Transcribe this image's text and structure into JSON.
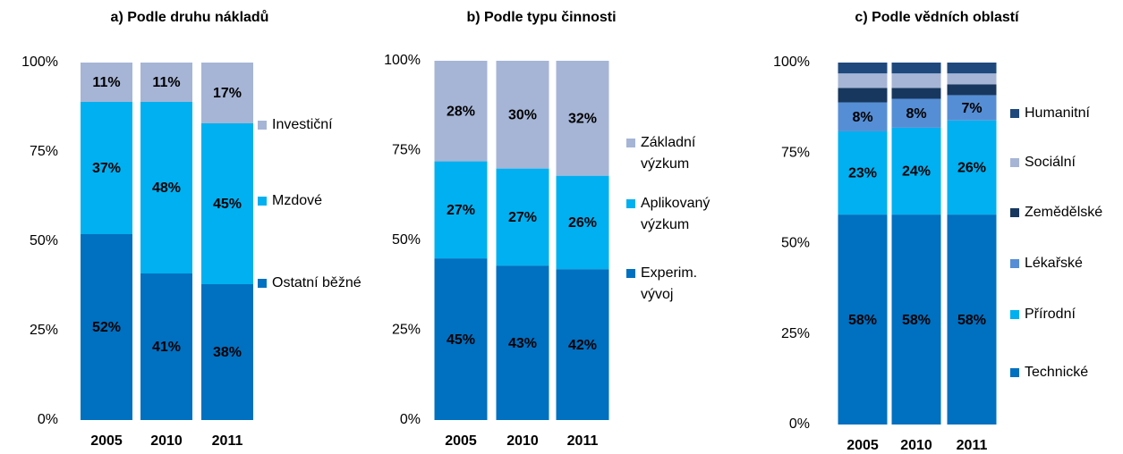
{
  "chart_data": [
    {
      "type": "stacked-bar",
      "title": "a) Podle druhu nákladů",
      "categories": [
        "2005",
        "2010",
        "2011"
      ],
      "series": [
        {
          "name": "Ostatní běžné",
          "color": "#0070c0",
          "values": [
            52,
            41,
            38
          ],
          "value_labels": [
            "52%",
            "41%",
            "38%"
          ]
        },
        {
          "name": "Mzdové",
          "color": "#00b0f0",
          "values": [
            37,
            48,
            45
          ],
          "value_labels": [
            "37%",
            "48%",
            "45%"
          ]
        },
        {
          "name": "Investiční",
          "color": "#a6b5d6",
          "values": [
            11,
            11,
            17
          ],
          "value_labels": [
            "11%",
            "11%",
            "17%"
          ]
        }
      ],
      "ylim": [
        0,
        100
      ],
      "yticks": [
        {
          "value": 0,
          "label": "0%"
        },
        {
          "value": 25,
          "label": "25%"
        },
        {
          "value": 50,
          "label": "50%"
        },
        {
          "value": 75,
          "label": "75%"
        },
        {
          "value": 100,
          "label": "100%"
        }
      ],
      "legend": "right"
    },
    {
      "type": "stacked-bar",
      "title": "b) Podle typu činnosti",
      "categories": [
        "2005",
        "2010",
        "2011"
      ],
      "series": [
        {
          "name": "Experim. vývoj",
          "color": "#0070c0",
          "values": [
            45,
            43,
            42
          ],
          "value_labels": [
            "45%",
            "43%",
            "42%"
          ]
        },
        {
          "name": "Aplikovaný výzkum",
          "color": "#00b0f0",
          "values": [
            27,
            27,
            26
          ],
          "value_labels": [
            "27%",
            "27%",
            "26%"
          ]
        },
        {
          "name": "Základní výzkum",
          "color": "#a6b5d6",
          "values": [
            28,
            30,
            32
          ],
          "value_labels": [
            "28%",
            "30%",
            "32%"
          ]
        }
      ],
      "ylim": [
        0,
        100
      ],
      "yticks": [
        {
          "value": 0,
          "label": "0%"
        },
        {
          "value": 25,
          "label": "25%"
        },
        {
          "value": 50,
          "label": "50%"
        },
        {
          "value": 75,
          "label": "75%"
        },
        {
          "value": 100,
          "label": "100%"
        }
      ],
      "legend": "right"
    },
    {
      "type": "stacked-bar",
      "title": "c) Podle vědních oblastí",
      "categories": [
        "2005",
        "2010",
        "2011"
      ],
      "series": [
        {
          "name": "Technické",
          "color": "#0070c0",
          "values": [
            58,
            58,
            58
          ],
          "value_labels": [
            "58%",
            "58%",
            "58%"
          ]
        },
        {
          "name": "Přírodní",
          "color": "#00b0f0",
          "values": [
            23,
            24,
            26
          ],
          "value_labels": [
            "23%",
            "24%",
            "26%"
          ]
        },
        {
          "name": "Lékařské",
          "color": "#558ed5",
          "values": [
            8,
            8,
            7
          ],
          "value_labels": [
            "8%",
            "8%",
            "7%"
          ]
        },
        {
          "name": "Zemědělské",
          "color": "#17375e",
          "values": [
            4,
            3,
            3
          ]
        },
        {
          "name": "Sociální",
          "color": "#a6b5d6",
          "values": [
            4,
            4,
            3
          ]
        },
        {
          "name": "Humanitní",
          "color": "#1f497d",
          "values": [
            3,
            3,
            3
          ]
        }
      ],
      "ylim": [
        0,
        100
      ],
      "yticks": [
        {
          "value": 0,
          "label": "0%"
        },
        {
          "value": 25,
          "label": "25%"
        },
        {
          "value": 50,
          "label": "50%"
        },
        {
          "value": 75,
          "label": "75%"
        },
        {
          "value": 100,
          "label": "100%"
        }
      ],
      "legend": "right"
    }
  ]
}
